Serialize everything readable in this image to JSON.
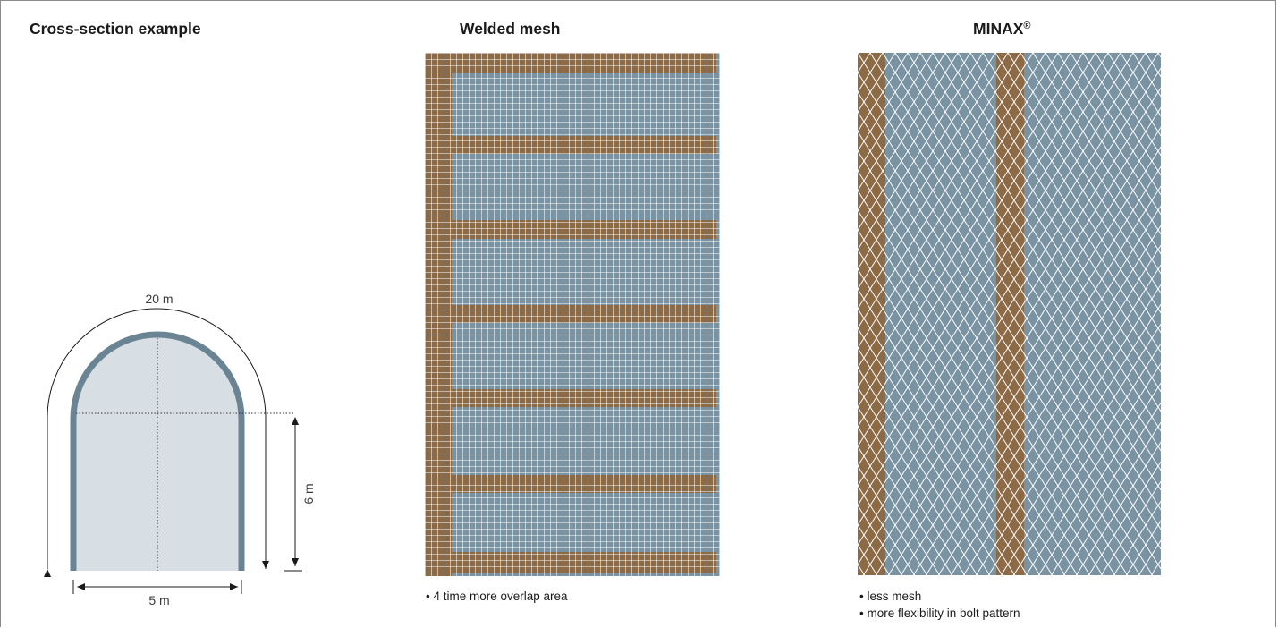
{
  "colors": {
    "frame": "#8c8c8c",
    "tunnel_fill": "#d7dfe5",
    "tunnel_wall": "#6b8494",
    "mesh_base": "#7a93a3",
    "overlap": "#8d6a46",
    "wire": "#ffffff"
  },
  "cross_section": {
    "title": "Cross-section example",
    "arc_label": "20 m",
    "height_label": "6 m",
    "width_label": "5 m"
  },
  "welded_mesh": {
    "title": "Welded mesh",
    "notes": [
      "4 time more overlap area"
    ]
  },
  "minax": {
    "title": "MINAX",
    "title_mark": "®",
    "notes": [
      "less mesh",
      "more flexibility in bolt pattern"
    ]
  }
}
